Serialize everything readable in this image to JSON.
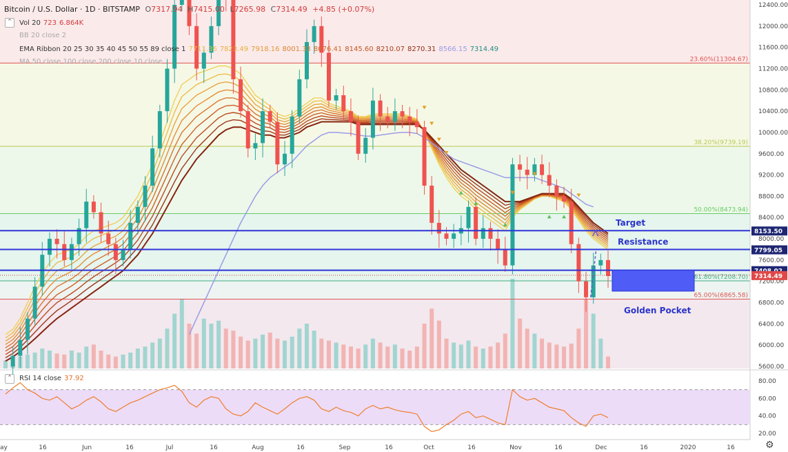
{
  "header": {
    "symbol": "Bitcoin / U.S. Dollar · 1D · BITSTAMP",
    "o_label": "O",
    "o": "7317.94",
    "h_label": "H",
    "h": "7415.00",
    "l_label": "L",
    "l": "7265.98",
    "c_label": "C",
    "c": "7314.49",
    "change": "+4.85 (+0.07%)"
  },
  "indicators": {
    "vol": {
      "name": "Vol 20",
      "v1": "723",
      "v2": "6.864K"
    },
    "bb": {
      "name": "BB 20 close 2"
    },
    "ema": {
      "name": "EMA Ribbon 20 25 30 35 40 45 50 55 89 close 1",
      "values": [
        "7711.36",
        "7823.49",
        "7918.16",
        "8001.33",
        "8076.41",
        "8145.60",
        "8210.07",
        "8270.31",
        "8566.15",
        "7314.49"
      ]
    },
    "ma": {
      "name": "MA 50 close 100 close 200 close 10 close"
    },
    "rsi": {
      "name": "RSI 14 close",
      "value": "37.92"
    }
  },
  "colors": {
    "up": "#26a69a",
    "down": "#ef5350",
    "blue_line": "#2d35d8",
    "box": "#4f5cf5",
    "ma_line": "#9a9ce6",
    "rsi_line": "#f07d2a",
    "rsi_band": "#ecdcf8",
    "text_label": "#2b34c9"
  },
  "annotations": {
    "target": "Target",
    "resistance": "Resistance",
    "golden_pocket": "Golden Pocket"
  },
  "chart_data": {
    "type": "candlestick",
    "price_axis": {
      "min": 5600,
      "max": 12400,
      "ticks": [
        12400,
        12000,
        11600,
        11200,
        10800,
        10400,
        10000,
        9600,
        9200,
        8800,
        8400,
        8000,
        7600,
        7200,
        6800,
        6400,
        6000,
        5600
      ]
    },
    "time_axis": {
      "ticks": [
        "ay",
        "16",
        "Jun",
        "16",
        "Jul",
        "16",
        "Aug",
        "16",
        "Sep",
        "16",
        "Oct",
        "16",
        "Nov",
        "16",
        "Dec",
        "16",
        "2020",
        "16"
      ]
    },
    "fib_levels": [
      {
        "label": "23.60%(11304.67)",
        "price": 11304.67
      },
      {
        "label": "38.20%(9739.19)",
        "price": 9739.19
      },
      {
        "label": "50.00%(8473.94)",
        "price": 8473.94
      },
      {
        "label": "61.80%(7208.70)",
        "price": 7208.7
      },
      {
        "label": "65.00%(6865.58)",
        "price": 6865.58
      }
    ],
    "horizontal_lines": [
      {
        "label": "8153.50",
        "price": 8153.5
      },
      {
        "label": "7799.05",
        "price": 7799.05
      },
      {
        "label": "7408.02",
        "price": 7408.02
      }
    ],
    "last_price": {
      "label": "7314.49",
      "price": 7314.49
    },
    "golden_pocket_zone": {
      "from": 6865.58,
      "to": 7208.7
    },
    "price_path": [
      5600,
      5800,
      6100,
      6500,
      7100,
      7700,
      8000,
      7900,
      7600,
      7900,
      8200,
      8700,
      8500,
      8100,
      7900,
      7600,
      7800,
      8300,
      8600,
      9000,
      9700,
      10400,
      11200,
      12400,
      13000,
      12000,
      11200,
      11500,
      12000,
      13200,
      12500,
      11000,
      10400,
      9700,
      9800,
      10400,
      10200,
      9400,
      9600,
      10300,
      11000,
      11700,
      12000,
      11500,
      10600,
      10700,
      10400,
      10200,
      9600,
      9900,
      10600,
      10300,
      10200,
      10400,
      10300,
      10200,
      10100,
      9000,
      8300,
      8100,
      8000,
      8100,
      8200,
      8600,
      8000,
      8200,
      8000,
      7800,
      7500,
      9400,
      9300,
      9200,
      9400,
      9200,
      9000,
      8800,
      8700,
      7900,
      7200,
      6900,
      7500,
      7600,
      7300
    ],
    "ema_top": [
      6200,
      6300,
      6500,
      6800,
      7100,
      7350,
      7550,
      7700,
      7750,
      7800,
      7900,
      8050,
      8150,
      8200,
      8250,
      8300,
      8400,
      8600,
      8800,
      9100,
      9400,
      9800,
      10200,
      10600,
      10900,
      11000,
      11100,
      11150,
      11200,
      11250,
      11250,
      11200,
      11100,
      10900,
      10700,
      10600,
      10500,
      10350,
      10300,
      10350,
      10450,
      10550,
      10650,
      10650,
      10550,
      10500,
      10450,
      10400,
      10300,
      10300,
      10350,
      10350,
      10350,
      10350,
      10350,
      10300,
      10250,
      10000,
      9700,
      9400,
      9150,
      8950,
      8800,
      8700,
      8550,
      8450,
      8350,
      8250,
      8150,
      8400,
      8550,
      8650,
      8750,
      8800,
      8800,
      8750,
      8700,
      8550,
      8350,
      8150,
      8000,
      7900,
      7800
    ],
    "ema_bottom": [
      5700,
      5780,
      5880,
      6000,
      6120,
      6250,
      6380,
      6500,
      6600,
      6700,
      6800,
      6900,
      7000,
      7100,
      7200,
      7300,
      7400,
      7550,
      7700,
      7900,
      8100,
      8350,
      8600,
      8850,
      9100,
      9300,
      9500,
      9650,
      9800,
      9950,
      10050,
      10100,
      10100,
      10050,
      10000,
      9950,
      9950,
      9900,
      9900,
      9950,
      10000,
      10100,
      10150,
      10200,
      10200,
      10200,
      10200,
      10200,
      10150,
      10150,
      10150,
      10150,
      10150,
      10150,
      10150,
      10150,
      10150,
      10050,
      9900,
      9750,
      9600,
      9450,
      9300,
      9200,
      9100,
      9000,
      8900,
      8800,
      8700,
      8700,
      8700,
      8750,
      8800,
      8850,
      8850,
      8850,
      8850,
      8750,
      8600,
      8450,
      8300,
      8200,
      8100
    ],
    "ma_line": [
      null,
      null,
      null,
      null,
      null,
      null,
      null,
      null,
      null,
      null,
      null,
      null,
      null,
      null,
      null,
      null,
      null,
      null,
      null,
      null,
      null,
      null,
      null,
      null,
      null,
      6200,
      6500,
      6800,
      7100,
      7400,
      7700,
      8000,
      8300,
      8550,
      8800,
      9000,
      9150,
      9250,
      9350,
      9450,
      9600,
      9750,
      9850,
      9950,
      10000,
      10000,
      9990,
      9980,
      9950,
      9930,
      9930,
      9950,
      9970,
      9990,
      10000,
      10000,
      9980,
      9900,
      9800,
      9700,
      9600,
      9500,
      9450,
      9400,
      9350,
      9300,
      9250,
      9200,
      9150,
      9150,
      9150,
      9150,
      9150,
      9100,
      9050,
      9000,
      8950,
      8850,
      8750,
      8650,
      8600,
      null,
      null
    ],
    "rsi": {
      "range": [
        20,
        80
      ],
      "ticks": [
        80,
        60,
        40,
        20
      ],
      "band": [
        30,
        70
      ],
      "value": 37.92,
      "values": [
        65,
        72,
        78,
        70,
        66,
        60,
        58,
        62,
        55,
        48,
        52,
        58,
        62,
        56,
        48,
        45,
        50,
        55,
        58,
        62,
        66,
        70,
        72,
        75,
        68,
        55,
        50,
        58,
        62,
        60,
        48,
        42,
        40,
        45,
        55,
        50,
        46,
        42,
        48,
        55,
        60,
        62,
        58,
        48,
        45,
        50,
        46,
        44,
        40,
        48,
        52,
        48,
        50,
        47,
        45,
        44,
        42,
        28,
        22,
        24,
        30,
        35,
        42,
        45,
        38,
        40,
        36,
        32,
        30,
        70,
        62,
        58,
        60,
        55,
        50,
        48,
        46,
        38,
        32,
        28,
        40,
        42,
        38
      ]
    },
    "volume": [
      8,
      10,
      12,
      14,
      16,
      20,
      18,
      15,
      14,
      18,
      16,
      22,
      24,
      18,
      14,
      12,
      14,
      16,
      20,
      22,
      26,
      30,
      40,
      55,
      70,
      45,
      35,
      50,
      45,
      48,
      40,
      38,
      32,
      28,
      30,
      34,
      36,
      30,
      28,
      32,
      40,
      45,
      38,
      30,
      28,
      26,
      24,
      22,
      20,
      24,
      30,
      26,
      22,
      24,
      20,
      18,
      22,
      45,
      60,
      48,
      30,
      26,
      24,
      28,
      22,
      20,
      22,
      26,
      35,
      90,
      50,
      40,
      35,
      30,
      26,
      24,
      22,
      25,
      40,
      70,
      55,
      30,
      12
    ],
    "markers": {
      "down": [
        {
          "i": 57
        },
        {
          "i": 58
        },
        {
          "i": 59
        },
        {
          "i": 60
        },
        {
          "i": 69
        },
        {
          "i": 72
        },
        {
          "i": 78
        }
      ],
      "up": [
        {
          "i": 62
        },
        {
          "i": 64
        },
        {
          "i": 68
        },
        {
          "i": 74
        },
        {
          "i": 76
        }
      ]
    }
  }
}
